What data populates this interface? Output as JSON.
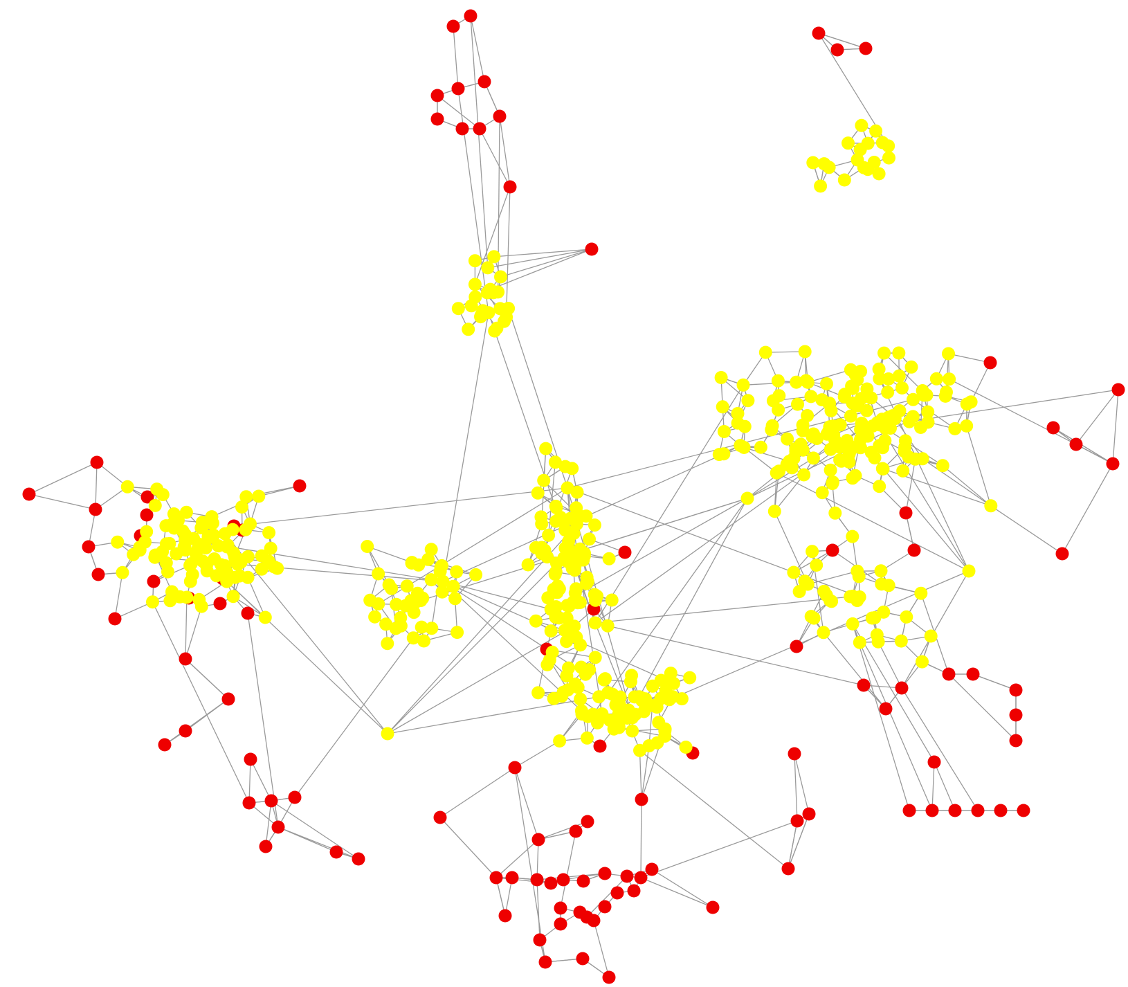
{
  "figure": {
    "kind": "network graph",
    "node_colors": {
      "high": "#ffff00",
      "low": "#ee0000"
    },
    "edge_color": "#9a9a9a",
    "background": "#ffffff",
    "title": ""
  },
  "cluster_counts": {
    "yellow_nodes_approx": 470,
    "red_nodes_approx": 140
  }
}
